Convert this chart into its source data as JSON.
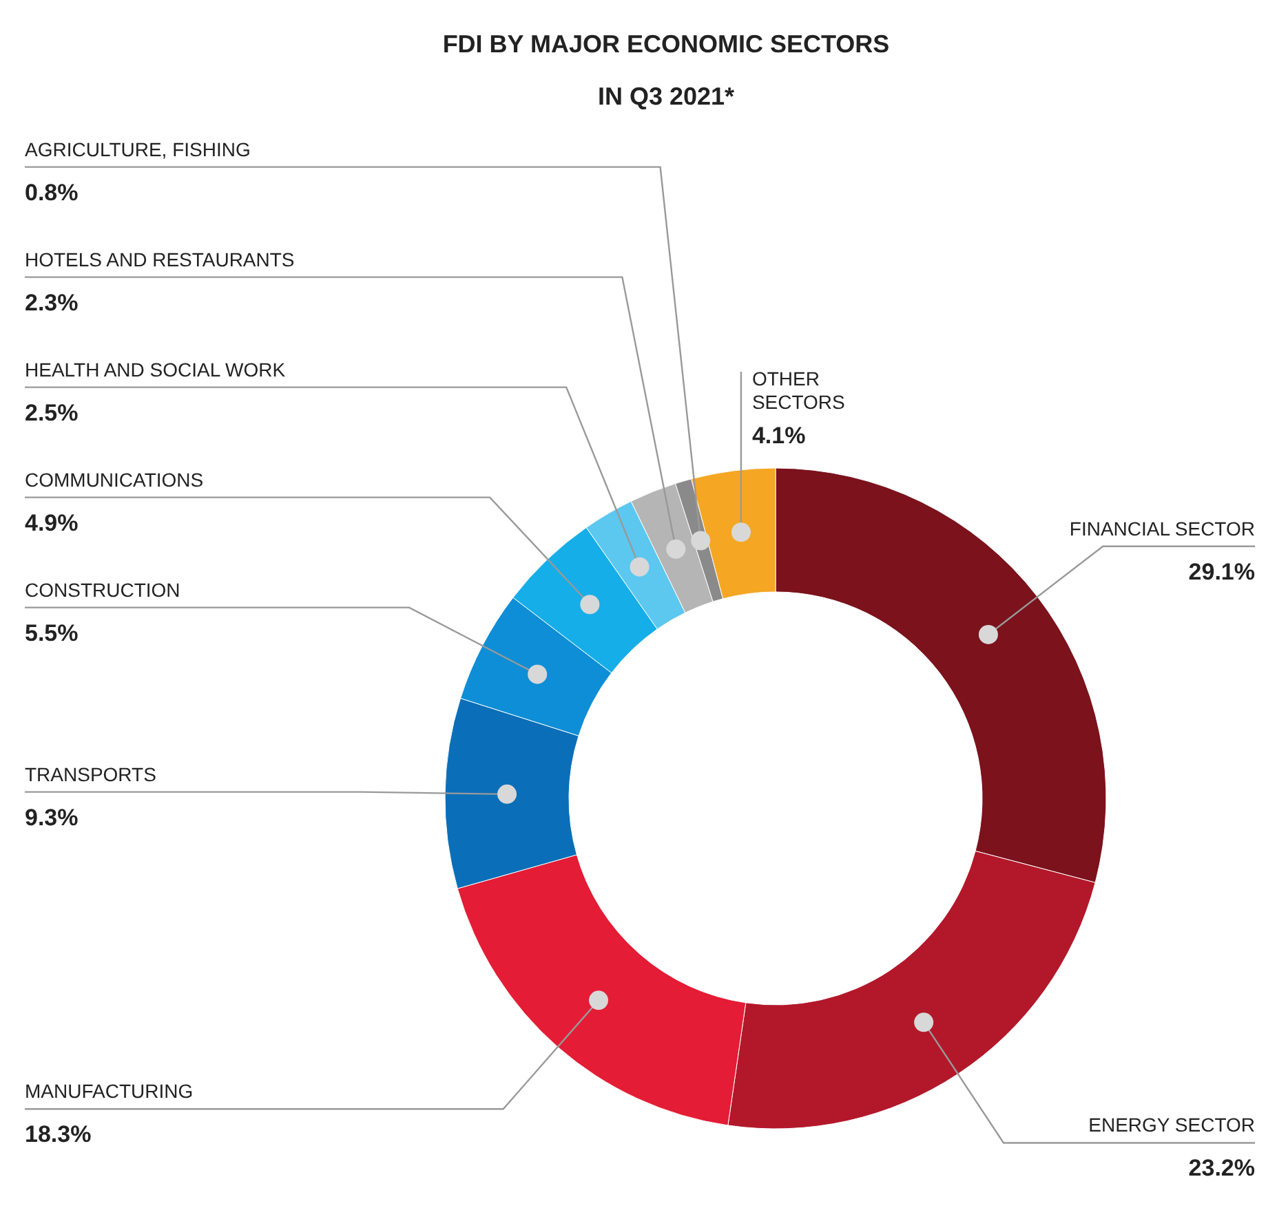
{
  "chart_data": {
    "type": "donut",
    "title": "FDI BY MAJOR ECONOMIC SECTORS IN Q3 2021*",
    "categories": [
      "FINANCIAL SECTOR",
      "ENERGY SECTOR",
      "MANUFACTURING",
      "TRANSPORTS",
      "CONSTRUCTION",
      "COMMUNICATIONS",
      "HEALTH AND SOCIAL WORK",
      "HOTELS AND RESTAURANTS",
      "AGRICULTURE, FISHING",
      "OTHER SECTORS"
    ],
    "values": [
      29.1,
      23.2,
      18.3,
      9.3,
      5.5,
      4.9,
      2.5,
      2.3,
      0.8,
      4.1
    ],
    "colors": [
      "#7b121c",
      "#b3182a",
      "#e41c35",
      "#0a6fb8",
      "#0e8ed6",
      "#16aee8",
      "#5cc8f0",
      "#b5b5b5",
      "#8a8a8a",
      "#f5a623"
    ],
    "value_labels": [
      "29.1%",
      "23.2%",
      "18.3%",
      "9.3%",
      "5.5%",
      "4.9%",
      "2.5%",
      "2.3%",
      "0.8%",
      "4.1%"
    ]
  }
}
